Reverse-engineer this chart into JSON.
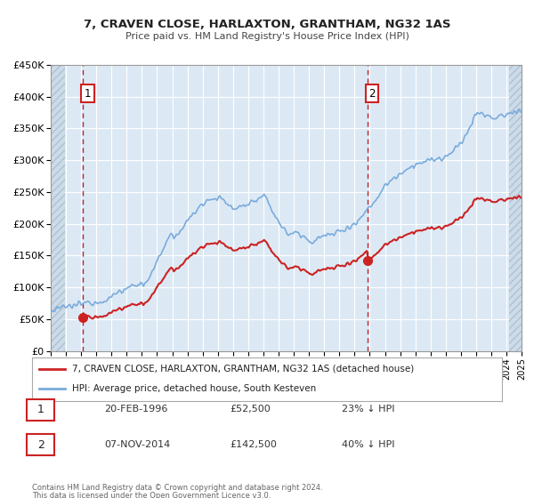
{
  "title": "7, CRAVEN CLOSE, HARLAXTON, GRANTHAM, NG32 1AS",
  "subtitle": "Price paid vs. HM Land Registry's House Price Index (HPI)",
  "hpi_color": "#7aabdc",
  "price_color": "#cc2222",
  "bg_color": "#dce9f5",
  "hatch_color": "#b8c8d8",
  "grid_color": "#ffffff",
  "sale1_date": 1996.12,
  "sale1_price": 52500,
  "sale2_date": 2014.84,
  "sale2_price": 142500,
  "legend_label1": "7, CRAVEN CLOSE, HARLAXTON, GRANTHAM, NG32 1AS (detached house)",
  "legend_label2": "HPI: Average price, detached house, South Kesteven",
  "table_row1": [
    "1",
    "20-FEB-1996",
    "£52,500",
    "23% ↓ HPI"
  ],
  "table_row2": [
    "2",
    "07-NOV-2014",
    "£142,500",
    "40% ↓ HPI"
  ],
  "footnote1": "Contains HM Land Registry data © Crown copyright and database right 2024.",
  "footnote2": "This data is licensed under the Open Government Licence v3.0.",
  "xmin": 1994,
  "xmax": 2025,
  "ymin": 0,
  "ymax": 450000
}
